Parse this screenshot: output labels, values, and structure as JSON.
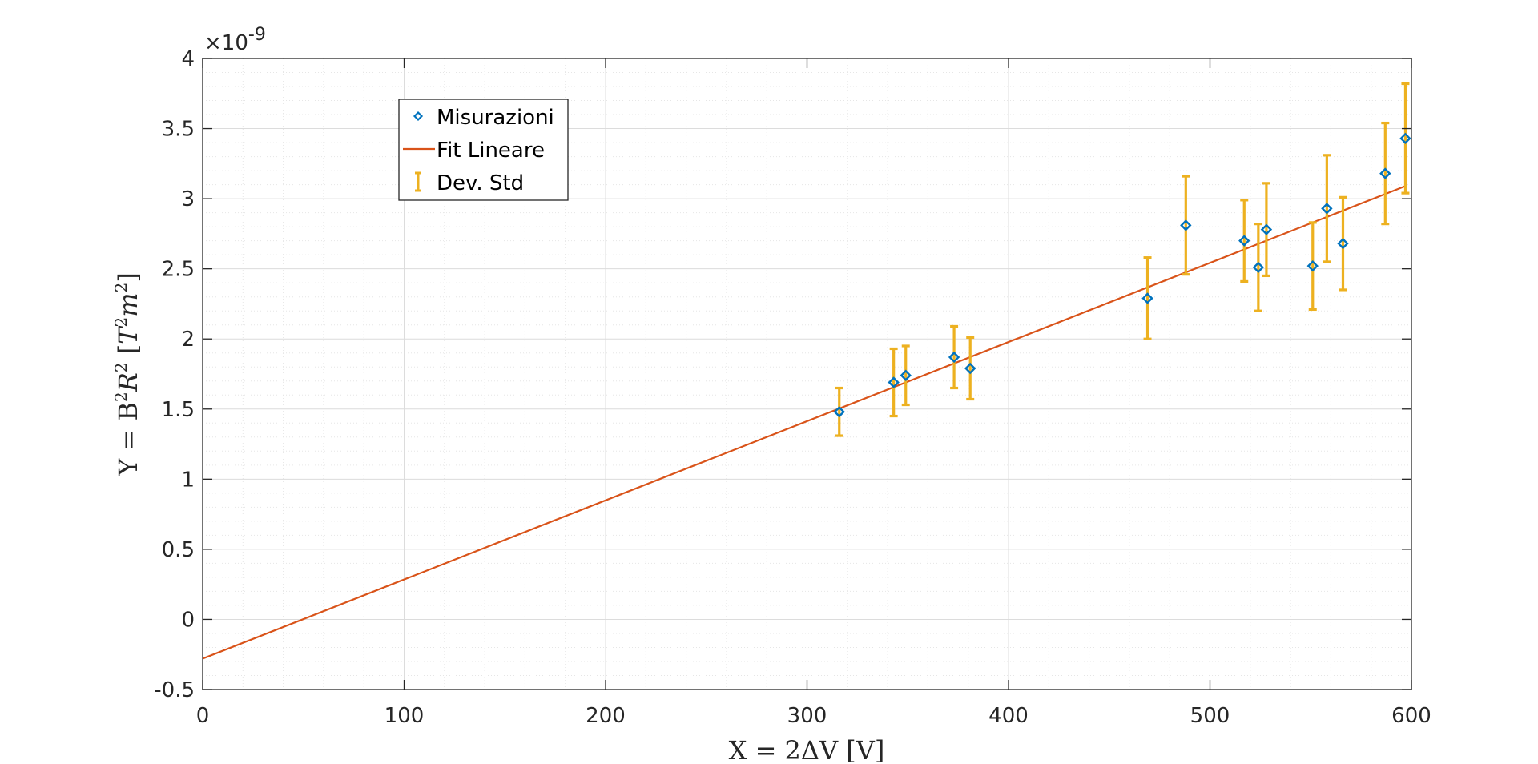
{
  "chart_data": {
    "type": "scatter",
    "xlabel": "X = 2ΔV [V]",
    "ylabel_main": "Y = B",
    "ylabel_parts": [
      "Y = B",
      "2",
      "R",
      "2",
      " [",
      "T",
      "2",
      "m",
      "2",
      "]"
    ],
    "exponent_prefix": "×10",
    "exponent_power": "-9",
    "xlim": [
      0,
      600
    ],
    "ylim": [
      -0.5,
      4
    ],
    "y_scale_factor": 1e-09,
    "x_ticks": [
      "0",
      "100",
      "200",
      "300",
      "400",
      "500",
      "600"
    ],
    "y_ticks": [
      "-0.5",
      "0",
      "0.5",
      "1",
      "1.5",
      "2",
      "2.5",
      "3",
      "3.5",
      "4"
    ],
    "grid": true,
    "minor_grid": true,
    "legend_position": "top-left",
    "legend": [
      "Misurazioni",
      "Fit Lineare",
      "Dev. Std"
    ],
    "fit_line": {
      "name": "Fit Lineare",
      "x": [
        0,
        597
      ],
      "y": [
        -0.28,
        3.09
      ],
      "color": "#D95319"
    },
    "series": [
      {
        "name": "Misurazioni",
        "color": "#0072BD",
        "x": [
          316,
          343,
          349,
          373,
          381,
          469,
          488,
          517,
          524,
          528,
          551,
          558,
          566,
          587,
          597
        ],
        "y": [
          1.48,
          1.69,
          1.74,
          1.87,
          1.79,
          2.29,
          2.81,
          2.7,
          2.51,
          2.78,
          2.52,
          2.93,
          2.68,
          3.18,
          3.43
        ],
        "error": [
          0.17,
          0.24,
          0.21,
          0.22,
          0.22,
          0.29,
          0.35,
          0.29,
          0.31,
          0.33,
          0.31,
          0.38,
          0.33,
          0.36,
          0.39
        ],
        "error_name": "Dev. Std",
        "error_color": "#EDB120"
      }
    ]
  }
}
